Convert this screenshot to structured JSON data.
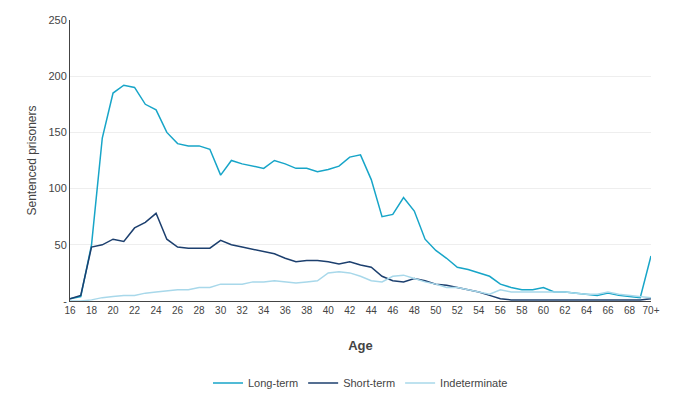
{
  "chart_data": {
    "type": "line",
    "xlabel": "Age",
    "ylabel": "Sentenced prisoners",
    "x": [
      16,
      17,
      18,
      19,
      20,
      21,
      22,
      23,
      24,
      25,
      26,
      27,
      28,
      29,
      30,
      31,
      32,
      33,
      34,
      35,
      36,
      37,
      38,
      39,
      40,
      41,
      42,
      43,
      44,
      45,
      46,
      47,
      48,
      49,
      50,
      51,
      52,
      53,
      54,
      55,
      56,
      57,
      58,
      59,
      60,
      61,
      62,
      63,
      64,
      65,
      66,
      67,
      68,
      69,
      70
    ],
    "series": [
      {
        "name": "Long-term",
        "color": "#17a5c8",
        "values": [
          2,
          4,
          50,
          145,
          185,
          192,
          190,
          175,
          170,
          150,
          140,
          138,
          138,
          135,
          112,
          125,
          122,
          120,
          118,
          125,
          122,
          118,
          118,
          115,
          117,
          120,
          128,
          130,
          108,
          75,
          77,
          92,
          80,
          55,
          45,
          38,
          30,
          28,
          25,
          22,
          15,
          12,
          10,
          10,
          12,
          8,
          8,
          7,
          6,
          5,
          7,
          5,
          4,
          3,
          40
        ]
      },
      {
        "name": "Short-term",
        "color": "#1c3f6e",
        "values": [
          2,
          5,
          48,
          50,
          55,
          53,
          65,
          70,
          78,
          55,
          48,
          47,
          47,
          47,
          54,
          50,
          48,
          46,
          44,
          42,
          38,
          35,
          36,
          36,
          35,
          33,
          35,
          32,
          30,
          22,
          18,
          17,
          20,
          18,
          15,
          14,
          12,
          10,
          8,
          5,
          2,
          1,
          1,
          1,
          1,
          1,
          1,
          1,
          1,
          1,
          1,
          1,
          1,
          1,
          2
        ]
      },
      {
        "name": "Indeterminate",
        "color": "#a8d8ea",
        "values": [
          0,
          0,
          1,
          3,
          4,
          5,
          5,
          7,
          8,
          9,
          10,
          10,
          12,
          12,
          15,
          15,
          15,
          17,
          17,
          18,
          17,
          16,
          17,
          18,
          25,
          26,
          25,
          22,
          18,
          17,
          22,
          23,
          20,
          17,
          15,
          12,
          12,
          10,
          8,
          6,
          10,
          8,
          8,
          8,
          8,
          8,
          8,
          7,
          6,
          6,
          8,
          6,
          5,
          4,
          3
        ]
      }
    ],
    "xlim": [
      16,
      70
    ],
    "xticks": [
      16,
      18,
      20,
      22,
      24,
      26,
      28,
      30,
      32,
      34,
      36,
      38,
      40,
      42,
      44,
      46,
      48,
      50,
      52,
      54,
      56,
      58,
      60,
      62,
      64,
      66,
      68,
      {
        "value": 70,
        "label": "70+"
      }
    ],
    "ylim": [
      0,
      250
    ],
    "yticks": [
      {
        "value": 0,
        "label": "-"
      },
      50,
      100,
      150,
      200,
      250
    ],
    "grid": true,
    "legend": "bottom"
  }
}
